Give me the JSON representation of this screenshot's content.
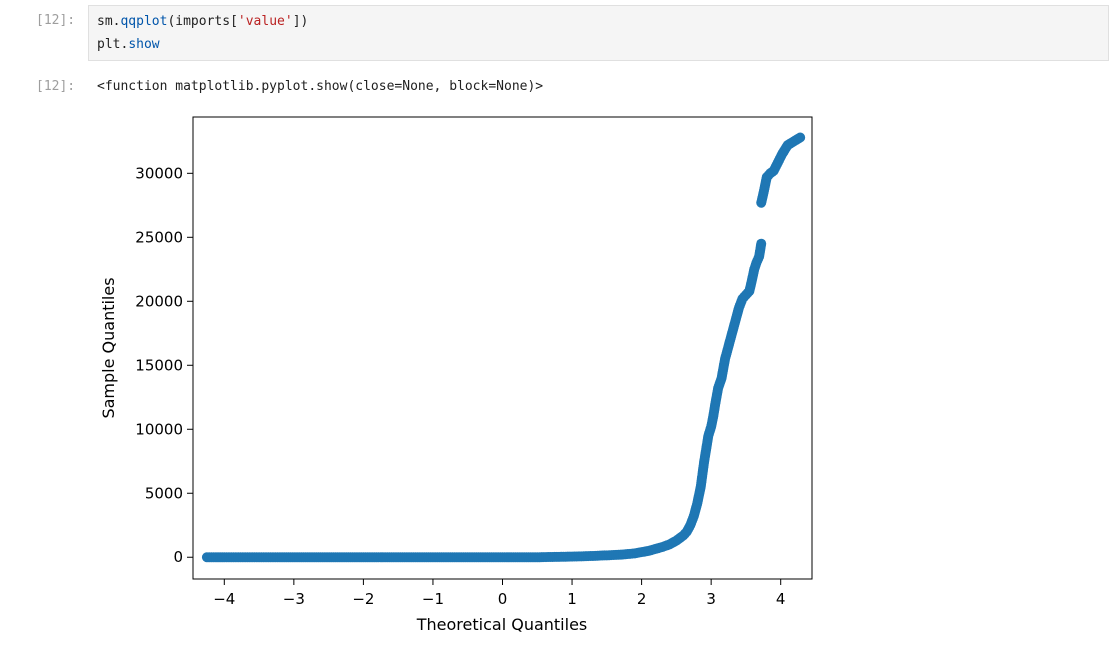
{
  "cell": {
    "input_prompt": "[12]:",
    "code_line1": {
      "module": "sm.",
      "func": "qqplot",
      "open": "(imports[",
      "arg": "'value'",
      "close": "])"
    },
    "code_line2": {
      "module": "plt.",
      "func": "show"
    },
    "output_prompt": "[12]:",
    "output_text": "<function matplotlib.pyplot.show(close=None, block=None)>"
  },
  "colors": {
    "marker": "#1f77b4",
    "code_background": "#f5f5f5",
    "prompt": "#9e9e9e"
  },
  "chart_data": {
    "type": "scatter",
    "title": "",
    "xlabel": "Theoretical Quantiles",
    "ylabel": "Sample Quantiles",
    "xlim": [
      -4.45,
      4.45
    ],
    "ylim": [
      -1700,
      34400
    ],
    "xticks": [
      -4,
      -3,
      -2,
      -1,
      0,
      1,
      2,
      3,
      4
    ],
    "xtick_labels": [
      "−4",
      "−3",
      "−2",
      "−1",
      "0",
      "1",
      "2",
      "3",
      "4"
    ],
    "yticks": [
      0,
      5000,
      10000,
      15000,
      20000,
      25000,
      30000
    ],
    "ytick_labels": [
      "0",
      "5000",
      "10000",
      "15000",
      "20000",
      "25000",
      "30000"
    ],
    "grid": false,
    "series": [
      {
        "x": [
          -4.25,
          -4.12,
          -4.0,
          -3.8,
          -3.5,
          -3.2,
          -2.8,
          -2.4,
          -2.0,
          -1.5,
          -1.0,
          -0.5,
          0.0,
          0.5,
          1.0,
          1.3,
          1.5,
          1.7,
          1.9,
          2.0,
          2.1,
          2.2,
          2.3,
          2.4,
          2.5,
          2.55,
          2.6,
          2.65,
          2.7,
          2.75,
          2.8,
          2.85,
          2.9,
          2.93,
          2.96,
          3.0,
          3.03,
          3.06,
          3.1,
          3.15,
          3.2,
          3.25,
          3.3,
          3.35,
          3.4,
          3.45,
          3.5,
          3.55,
          3.58,
          3.62,
          3.65,
          3.69,
          3.72,
          3.72,
          3.75,
          3.8,
          3.85,
          3.9,
          4.02,
          4.1,
          4.28
        ],
        "y": [
          0,
          0,
          0,
          0,
          0,
          0,
          0,
          0,
          0,
          0,
          0,
          0,
          0,
          0,
          50,
          100,
          150,
          200,
          300,
          400,
          500,
          650,
          800,
          1000,
          1300,
          1500,
          1700,
          2000,
          2500,
          3200,
          4200,
          5500,
          7500,
          8500,
          9500,
          10200,
          11000,
          12000,
          13200,
          14000,
          15500,
          16500,
          17500,
          18500,
          19500,
          20200,
          20500,
          20800,
          21500,
          22500,
          23000,
          23500,
          24500,
          27700,
          28400,
          29700,
          30000,
          30200,
          31500,
          32200,
          32800
        ]
      }
    ]
  }
}
